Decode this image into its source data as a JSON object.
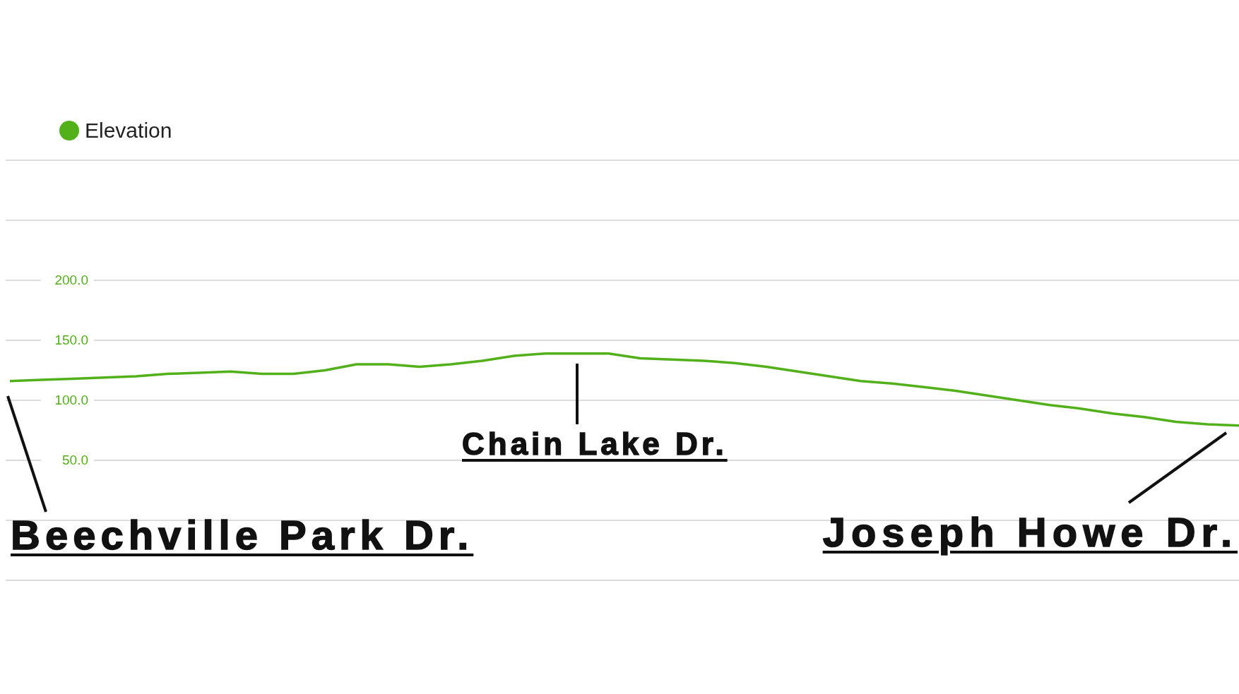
{
  "chart_data": {
    "type": "line",
    "categories": [
      null,
      null,
      null,
      null,
      null,
      null,
      null,
      null,
      null,
      null,
      null,
      null,
      null,
      null,
      null,
      null,
      null,
      null,
      null,
      null,
      null,
      null,
      null,
      null,
      null,
      null,
      null,
      null,
      null,
      null,
      null,
      null,
      null,
      null,
      null,
      null,
      null,
      null,
      null,
      null
    ],
    "series": [
      {
        "name": "Elevation",
        "color": "#52b01a",
        "values": [
          116,
          117,
          118,
          119,
          120,
          122,
          123,
          124,
          122,
          122,
          125,
          130,
          130,
          128,
          130,
          133,
          137,
          139,
          139,
          139,
          135,
          134,
          133,
          131,
          128,
          124,
          120,
          116,
          114,
          111,
          108,
          104,
          100,
          96,
          93,
          89,
          86,
          82,
          80,
          79
        ]
      }
    ],
    "ylim": [
      -50,
      300
    ],
    "yticks": [
      {
        "value": -50,
        "label": null
      },
      {
        "value": 0,
        "label": null
      },
      {
        "value": 50,
        "label": "50.0"
      },
      {
        "value": 100,
        "label": "100.0"
      },
      {
        "value": 150,
        "label": "150.0"
      },
      {
        "value": 200,
        "label": "200.0"
      },
      {
        "value": 250,
        "label": null
      },
      {
        "value": 300,
        "label": null
      }
    ],
    "grid": "y",
    "legend": "top left",
    "marker": "none",
    "line_style": "solid",
    "annotations": [
      "Beechville Park Dr.",
      "Chain Lake Dr.",
      "Joseph Howe Dr."
    ]
  }
}
